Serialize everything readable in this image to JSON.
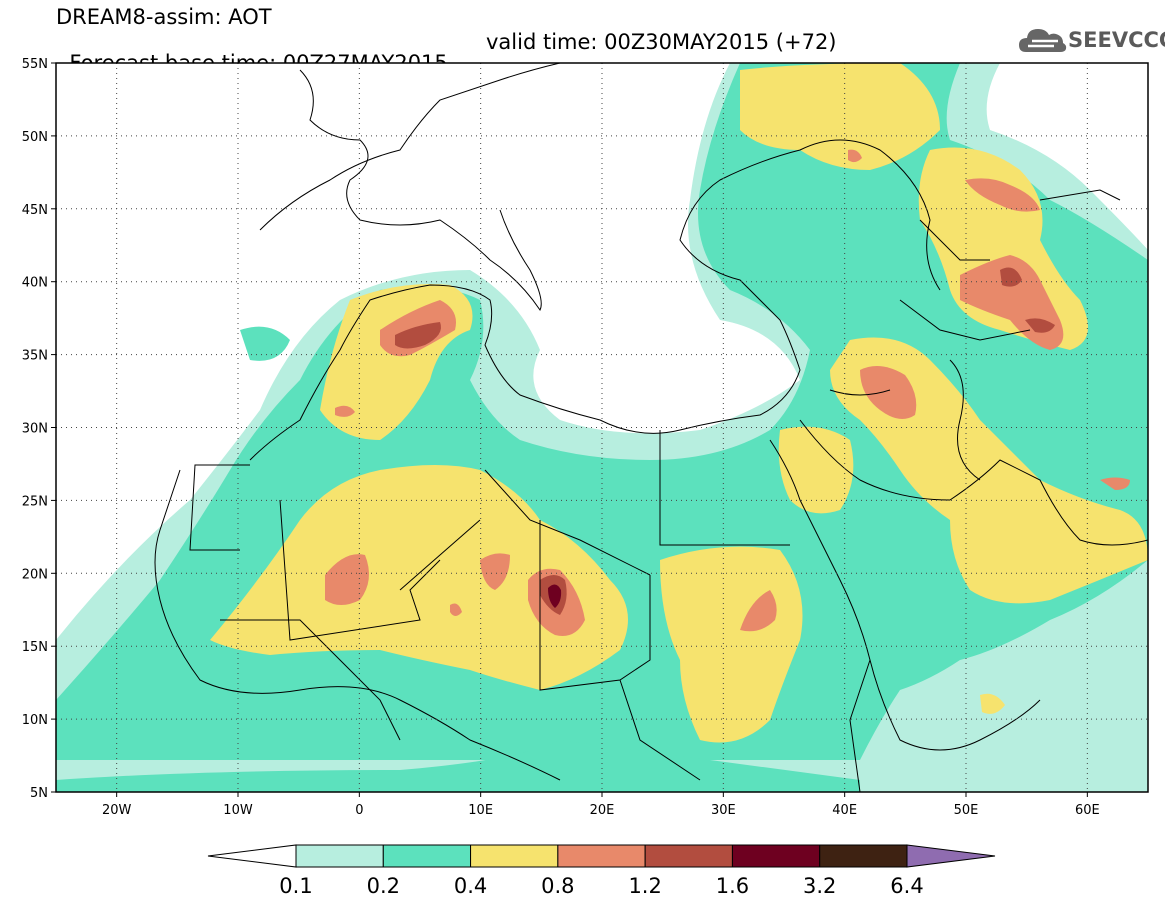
{
  "header": {
    "line1": "DREAM8-assim: AOT",
    "line2_base": "Forecast base time: 00Z27MAY2015",
    "line2_valid": "valid time: 00Z30MAY2015 (+72)"
  },
  "logo": {
    "text": "SEEVCCC",
    "icon": "cloud-icon"
  },
  "map": {
    "lon_range": [
      -25,
      65
    ],
    "lat_range": [
      5,
      55
    ],
    "lat_ticks": [
      {
        "value": 55,
        "label": "55N"
      },
      {
        "value": 50,
        "label": "50N"
      },
      {
        "value": 45,
        "label": "45N"
      },
      {
        "value": 40,
        "label": "40N"
      },
      {
        "value": 35,
        "label": "35N"
      },
      {
        "value": 30,
        "label": "30N"
      },
      {
        "value": 25,
        "label": "25N"
      },
      {
        "value": 20,
        "label": "20N"
      },
      {
        "value": 15,
        "label": "15N"
      },
      {
        "value": 10,
        "label": "10N"
      },
      {
        "value": 5,
        "label": "5N"
      }
    ],
    "lon_ticks": [
      {
        "value": -20,
        "label": "20W"
      },
      {
        "value": -10,
        "label": "10W"
      },
      {
        "value": 0,
        "label": "0"
      },
      {
        "value": 10,
        "label": "10E"
      },
      {
        "value": 20,
        "label": "20E"
      },
      {
        "value": 30,
        "label": "30E"
      },
      {
        "value": 40,
        "label": "40E"
      },
      {
        "value": 50,
        "label": "50E"
      },
      {
        "value": 60,
        "label": "60E"
      }
    ],
    "dotted_grid": true
  },
  "legend": {
    "labels": [
      "0.1",
      "0.2",
      "0.4",
      "0.8",
      "1.2",
      "1.6",
      "3.2",
      "6.4"
    ],
    "colors": [
      "#ffffff",
      "#b7eedf",
      "#5ce1bd",
      "#f6e36e",
      "#e8896a",
      "#b24d3f",
      "#6e0020",
      "#3e2212",
      "#8f6cb0"
    ]
  }
}
